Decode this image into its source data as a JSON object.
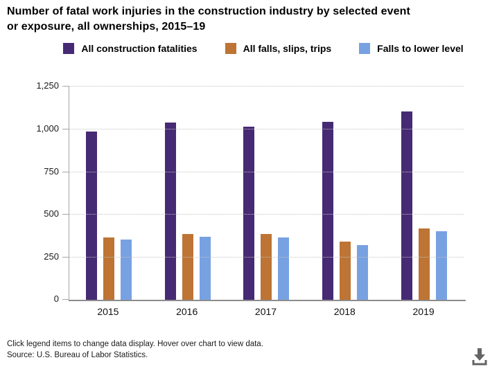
{
  "title_lines": [
    "Number of fatal work injuries in the construction industry by selected event",
    "or exposure, all ownerships, 2015–19"
  ],
  "chart_data": {
    "type": "bar",
    "title": "Number of fatal work injuries in the construction industry by selected event or exposure, all ownerships, 2015–19",
    "categories": [
      "2015",
      "2016",
      "2017",
      "2018",
      "2019"
    ],
    "series": [
      {
        "name": "All construction fatalities",
        "color": "#462a74",
        "values": [
          985,
          1034,
          1013,
          1038,
          1102
        ]
      },
      {
        "name": "All falls, slips, trips",
        "color": "#bd7434",
        "values": [
          364,
          384,
          386,
          338,
          418
        ]
      },
      {
        "name": "Falls to lower level",
        "color": "#78a1e2",
        "values": [
          350,
          370,
          366,
          320,
          401
        ]
      }
    ],
    "xlabel": "",
    "ylabel": "",
    "ylim": [
      0,
      1250
    ],
    "yticks": [
      0,
      250,
      500,
      750,
      1000,
      1250
    ],
    "ytick_labels": [
      "0",
      "250",
      "500",
      "750",
      "1,000",
      "1,250"
    ],
    "grid": "horizontal-dotted",
    "legend_position": "top"
  },
  "footer": {
    "note": "Click legend items to change data display. Hover over chart to view data.",
    "source": "Source: U.S. Bureau of Labor Statistics."
  },
  "icons": {
    "download": "download-icon",
    "download_color": "#636466"
  }
}
